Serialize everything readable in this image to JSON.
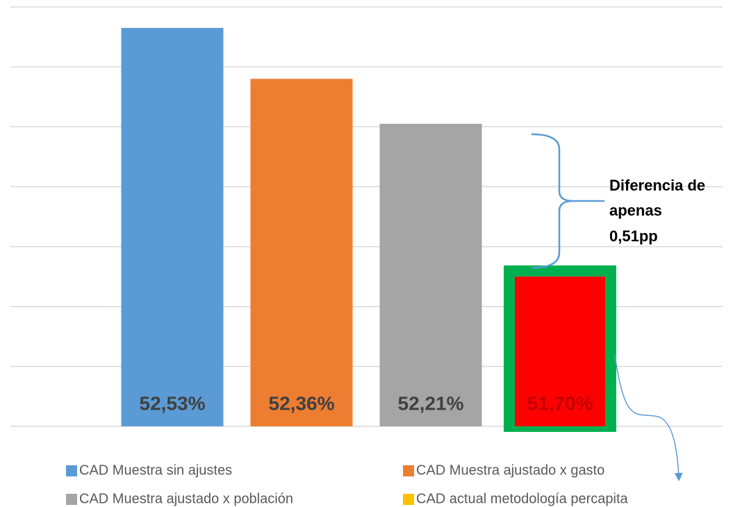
{
  "chart_data": {
    "type": "bar",
    "categories": [
      "CAD Muestra sin ajustes",
      "CAD Muestra ajustado x gasto",
      "CAD Muestra ajustado x población",
      "CAD actual metodología percapita"
    ],
    "values": [
      52.53,
      52.36,
      52.21,
      51.7
    ],
    "value_labels": [
      "52,53%",
      "52,36%",
      "52,21%",
      "51,70%"
    ],
    "colors": [
      "#5b9bd5",
      "#ed7d31",
      "#a5a5a5",
      "#ff0000"
    ],
    "legend_colors": [
      "#5b9bd5",
      "#ed7d31",
      "#a5a5a5",
      "#ffc000"
    ],
    "highlight": {
      "index": 3,
      "border_color": "#00b050",
      "label_color": "#c00000"
    },
    "ylim": [
      51.2,
      52.6
    ],
    "yticks": [
      51.2,
      51.4,
      51.6,
      51.8,
      52.0,
      52.2,
      52.4,
      52.6
    ],
    "grid": true,
    "annotation": [
      "Diferencia de",
      "apenas",
      "0,51pp"
    ]
  }
}
